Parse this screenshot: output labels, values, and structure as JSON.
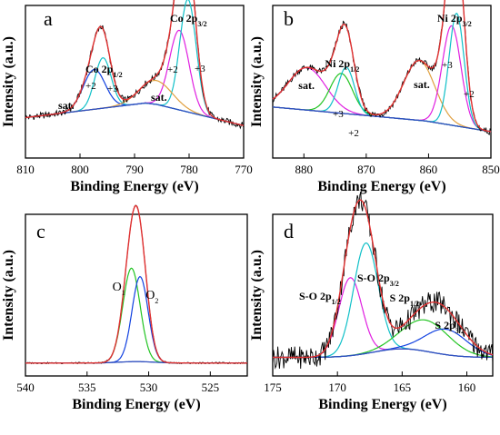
{
  "colors": {
    "raw": "#000000",
    "envelope": "#e03030",
    "background": "#2f4fbf",
    "c_blue": "#1040e0",
    "c_cyan": "#10c0c8",
    "c_magenta": "#e020e0",
    "c_orange": "#e0a040",
    "c_green": "#22c422",
    "c_lightblue": "#3080e0"
  },
  "chart_data": [
    {
      "type": "line",
      "panel": "a",
      "xlabel": "Binding Energy (eV)",
      "ylabel": "Intensity (a.u.)",
      "xlim": [
        810,
        770
      ],
      "x_ticks": [
        810,
        800,
        790,
        780,
        770
      ],
      "reversed_x": true,
      "annotations": [
        {
          "text": "sat.",
          "x": 803
        },
        {
          "text": "+2",
          "x": 798
        },
        {
          "text": "+3",
          "x": 794
        },
        {
          "text": "sat.",
          "x": 786
        },
        {
          "text": "+2",
          "x": 783
        },
        {
          "text": "+3",
          "x": 778
        }
      ],
      "peak_labels": [
        {
          "base": "Co 2p",
          "sub": "1/2",
          "x": 796
        },
        {
          "base": "Co 2p",
          "sub": "3/2",
          "x": 780.5
        }
      ],
      "peaks": [
        {
          "color": "c_blue",
          "center": 797.4,
          "height": 0.3,
          "width": 2.0
        },
        {
          "color": "c_cyan",
          "center": 795.8,
          "height": 0.38,
          "width": 1.5
        },
        {
          "color": "c_magenta",
          "center": 781.8,
          "height": 0.6,
          "width": 1.8
        },
        {
          "color": "c_cyan",
          "center": 780.2,
          "height": 0.85,
          "width": 1.5
        },
        {
          "color": "c_orange",
          "center": 786.0,
          "height": 0.18,
          "width": 3.0
        }
      ]
    },
    {
      "type": "line",
      "panel": "b",
      "xlabel": "Binding Energy (eV)",
      "ylabel": "Intensity (a.u.)",
      "xlim": [
        885,
        850
      ],
      "x_ticks": [
        880,
        870,
        860,
        850
      ],
      "reversed_x": true,
      "annotations": [
        {
          "text": "sat.",
          "x": 880
        },
        {
          "text": "+3",
          "x": 874.5
        },
        {
          "text": "+2",
          "x": 872
        },
        {
          "text": "sat.",
          "x": 861.5
        },
        {
          "text": "+3",
          "x": 857
        },
        {
          "text": "+2",
          "x": 853.5
        }
      ],
      "peak_labels": [
        {
          "base": "Ni 2p",
          "sub": "1/2",
          "x": 874
        },
        {
          "base": "Ni 2p",
          "sub": "3/2",
          "x": 856
        }
      ],
      "peaks": [
        {
          "color": "c_magenta",
          "center": 879.5,
          "height": 0.32,
          "width": 3.0
        },
        {
          "color": "c_green",
          "center": 874.0,
          "height": 0.3,
          "width": 1.8
        },
        {
          "color": "c_cyan",
          "center": 873.2,
          "height": 0.35,
          "width": 1.3
        },
        {
          "color": "c_orange",
          "center": 861.5,
          "height": 0.45,
          "width": 2.5
        },
        {
          "color": "c_magenta",
          "center": 856.3,
          "height": 0.75,
          "width": 1.5
        },
        {
          "color": "c_cyan",
          "center": 855.5,
          "height": 0.85,
          "width": 1.2
        }
      ]
    },
    {
      "type": "line",
      "panel": "c",
      "xlabel": "Binding Energy (eV)",
      "ylabel": "Intensity (a.u.)",
      "xlim": [
        540,
        522
      ],
      "x_ticks": [
        540,
        535,
        530,
        525
      ],
      "reversed_x": true,
      "annotations": [
        {
          "base": "O",
          "sub": "1",
          "x": 532.5
        },
        {
          "base": "O",
          "sub": "2",
          "x": 529.8
        }
      ],
      "peaks": [
        {
          "color": "c_green",
          "center": 531.4,
          "height": 0.66,
          "width": 0.7
        },
        {
          "color": "c_blue",
          "center": 530.7,
          "height": 0.6,
          "width": 0.65
        }
      ]
    },
    {
      "type": "line",
      "panel": "d",
      "xlabel": "Binding Energy (eV)",
      "ylabel": "Intensity (a.u.)",
      "xlim": [
        175,
        158
      ],
      "x_ticks": [
        175,
        170,
        165,
        160
      ],
      "reversed_x": true,
      "annotations": [
        {
          "base": "S-O 2p",
          "sub": "1/2",
          "x": 171
        },
        {
          "base": "S-O 2p",
          "sub": "3/2",
          "x": 166.5
        },
        {
          "base": "S 2p",
          "sub": "1/2",
          "x": 164
        },
        {
          "base": "S 2p",
          "sub": "3/2",
          "x": 160.5
        }
      ],
      "peaks": [
        {
          "color": "c_magenta",
          "center": 169.0,
          "height": 0.55,
          "width": 0.9
        },
        {
          "color": "c_cyan",
          "center": 167.8,
          "height": 0.78,
          "width": 0.95
        },
        {
          "color": "c_green",
          "center": 163.2,
          "height": 0.22,
          "width": 1.8
        },
        {
          "color": "c_blue",
          "center": 161.6,
          "height": 0.18,
          "width": 1.6
        }
      ]
    }
  ]
}
